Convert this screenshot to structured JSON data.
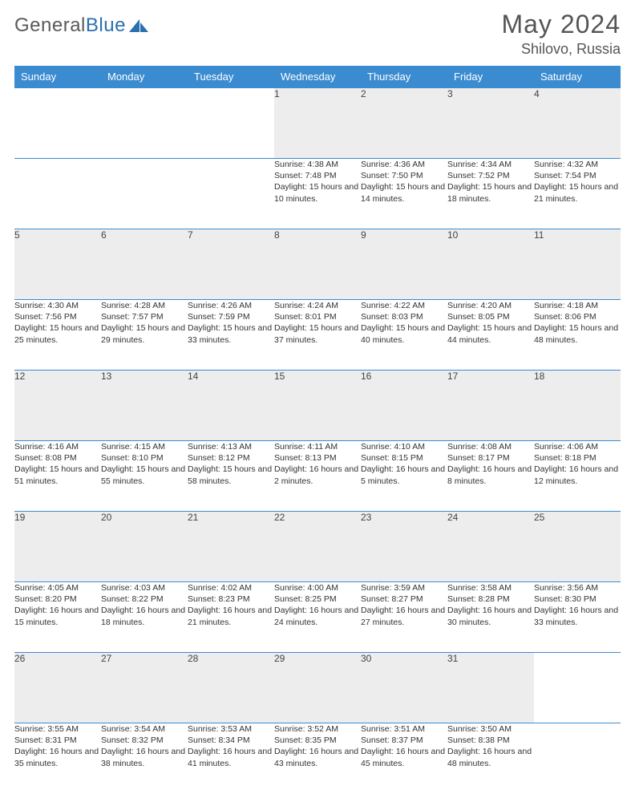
{
  "brand": {
    "name_a": "General",
    "name_b": "Blue"
  },
  "title": "May 2024",
  "location": "Shilovo, Russia",
  "colors": {
    "header_bg": "#3b8bd0",
    "header_text": "#ffffff",
    "daynum_bg": "#ededed",
    "rule": "#3b8bd0",
    "body_text": "#333333",
    "title_text": "#555555"
  },
  "layout": {
    "cols": 7,
    "col_width_pct": 14.28
  },
  "weekdays": [
    "Sunday",
    "Monday",
    "Tuesday",
    "Wednesday",
    "Thursday",
    "Friday",
    "Saturday"
  ],
  "weeks": [
    [
      {
        "blank": true
      },
      {
        "blank": true
      },
      {
        "blank": true
      },
      {
        "n": "1",
        "sunrise": "Sunrise: 4:38 AM",
        "sunset": "Sunset: 7:48 PM",
        "day": "Daylight: 15 hours and 10 minutes."
      },
      {
        "n": "2",
        "sunrise": "Sunrise: 4:36 AM",
        "sunset": "Sunset: 7:50 PM",
        "day": "Daylight: 15 hours and 14 minutes."
      },
      {
        "n": "3",
        "sunrise": "Sunrise: 4:34 AM",
        "sunset": "Sunset: 7:52 PM",
        "day": "Daylight: 15 hours and 18 minutes."
      },
      {
        "n": "4",
        "sunrise": "Sunrise: 4:32 AM",
        "sunset": "Sunset: 7:54 PM",
        "day": "Daylight: 15 hours and 21 minutes."
      }
    ],
    [
      {
        "n": "5",
        "sunrise": "Sunrise: 4:30 AM",
        "sunset": "Sunset: 7:56 PM",
        "day": "Daylight: 15 hours and 25 minutes."
      },
      {
        "n": "6",
        "sunrise": "Sunrise: 4:28 AM",
        "sunset": "Sunset: 7:57 PM",
        "day": "Daylight: 15 hours and 29 minutes."
      },
      {
        "n": "7",
        "sunrise": "Sunrise: 4:26 AM",
        "sunset": "Sunset: 7:59 PM",
        "day": "Daylight: 15 hours and 33 minutes."
      },
      {
        "n": "8",
        "sunrise": "Sunrise: 4:24 AM",
        "sunset": "Sunset: 8:01 PM",
        "day": "Daylight: 15 hours and 37 minutes."
      },
      {
        "n": "9",
        "sunrise": "Sunrise: 4:22 AM",
        "sunset": "Sunset: 8:03 PM",
        "day": "Daylight: 15 hours and 40 minutes."
      },
      {
        "n": "10",
        "sunrise": "Sunrise: 4:20 AM",
        "sunset": "Sunset: 8:05 PM",
        "day": "Daylight: 15 hours and 44 minutes."
      },
      {
        "n": "11",
        "sunrise": "Sunrise: 4:18 AM",
        "sunset": "Sunset: 8:06 PM",
        "day": "Daylight: 15 hours and 48 minutes."
      }
    ],
    [
      {
        "n": "12",
        "sunrise": "Sunrise: 4:16 AM",
        "sunset": "Sunset: 8:08 PM",
        "day": "Daylight: 15 hours and 51 minutes."
      },
      {
        "n": "13",
        "sunrise": "Sunrise: 4:15 AM",
        "sunset": "Sunset: 8:10 PM",
        "day": "Daylight: 15 hours and 55 minutes."
      },
      {
        "n": "14",
        "sunrise": "Sunrise: 4:13 AM",
        "sunset": "Sunset: 8:12 PM",
        "day": "Daylight: 15 hours and 58 minutes."
      },
      {
        "n": "15",
        "sunrise": "Sunrise: 4:11 AM",
        "sunset": "Sunset: 8:13 PM",
        "day": "Daylight: 16 hours and 2 minutes."
      },
      {
        "n": "16",
        "sunrise": "Sunrise: 4:10 AM",
        "sunset": "Sunset: 8:15 PM",
        "day": "Daylight: 16 hours and 5 minutes."
      },
      {
        "n": "17",
        "sunrise": "Sunrise: 4:08 AM",
        "sunset": "Sunset: 8:17 PM",
        "day": "Daylight: 16 hours and 8 minutes."
      },
      {
        "n": "18",
        "sunrise": "Sunrise: 4:06 AM",
        "sunset": "Sunset: 8:18 PM",
        "day": "Daylight: 16 hours and 12 minutes."
      }
    ],
    [
      {
        "n": "19",
        "sunrise": "Sunrise: 4:05 AM",
        "sunset": "Sunset: 8:20 PM",
        "day": "Daylight: 16 hours and 15 minutes."
      },
      {
        "n": "20",
        "sunrise": "Sunrise: 4:03 AM",
        "sunset": "Sunset: 8:22 PM",
        "day": "Daylight: 16 hours and 18 minutes."
      },
      {
        "n": "21",
        "sunrise": "Sunrise: 4:02 AM",
        "sunset": "Sunset: 8:23 PM",
        "day": "Daylight: 16 hours and 21 minutes."
      },
      {
        "n": "22",
        "sunrise": "Sunrise: 4:00 AM",
        "sunset": "Sunset: 8:25 PM",
        "day": "Daylight: 16 hours and 24 minutes."
      },
      {
        "n": "23",
        "sunrise": "Sunrise: 3:59 AM",
        "sunset": "Sunset: 8:27 PM",
        "day": "Daylight: 16 hours and 27 minutes."
      },
      {
        "n": "24",
        "sunrise": "Sunrise: 3:58 AM",
        "sunset": "Sunset: 8:28 PM",
        "day": "Daylight: 16 hours and 30 minutes."
      },
      {
        "n": "25",
        "sunrise": "Sunrise: 3:56 AM",
        "sunset": "Sunset: 8:30 PM",
        "day": "Daylight: 16 hours and 33 minutes."
      }
    ],
    [
      {
        "n": "26",
        "sunrise": "Sunrise: 3:55 AM",
        "sunset": "Sunset: 8:31 PM",
        "day": "Daylight: 16 hours and 35 minutes."
      },
      {
        "n": "27",
        "sunrise": "Sunrise: 3:54 AM",
        "sunset": "Sunset: 8:32 PM",
        "day": "Daylight: 16 hours and 38 minutes."
      },
      {
        "n": "28",
        "sunrise": "Sunrise: 3:53 AM",
        "sunset": "Sunset: 8:34 PM",
        "day": "Daylight: 16 hours and 41 minutes."
      },
      {
        "n": "29",
        "sunrise": "Sunrise: 3:52 AM",
        "sunset": "Sunset: 8:35 PM",
        "day": "Daylight: 16 hours and 43 minutes."
      },
      {
        "n": "30",
        "sunrise": "Sunrise: 3:51 AM",
        "sunset": "Sunset: 8:37 PM",
        "day": "Daylight: 16 hours and 45 minutes."
      },
      {
        "n": "31",
        "sunrise": "Sunrise: 3:50 AM",
        "sunset": "Sunset: 8:38 PM",
        "day": "Daylight: 16 hours and 48 minutes."
      },
      {
        "blank": true
      }
    ]
  ]
}
